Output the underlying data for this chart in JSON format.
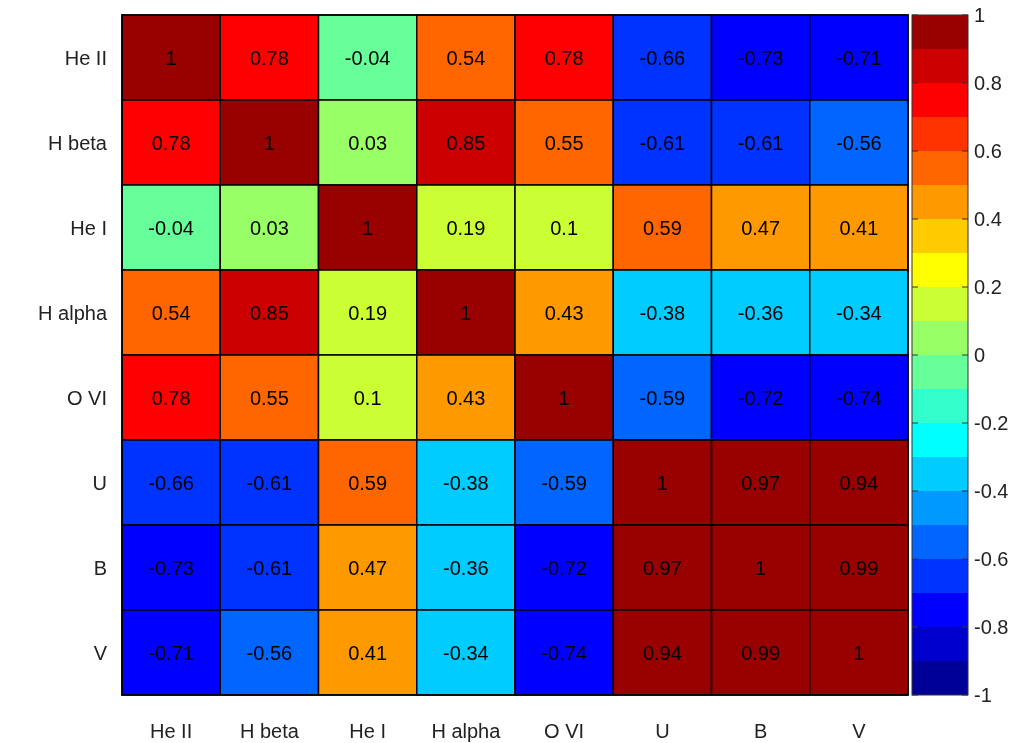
{
  "chart_data": {
    "type": "heatmap",
    "categories": [
      "He II",
      "H beta",
      "He I",
      "H alpha",
      "O VI",
      "U",
      "B",
      "V"
    ],
    "y_categories": [
      "He II",
      "H beta",
      "He I",
      "H alpha",
      "O VI",
      "U",
      "B",
      "V"
    ],
    "cells": [
      [
        1,
        0.78,
        -0.04,
        0.54,
        0.78,
        -0.66,
        -0.73,
        -0.71
      ],
      [
        0.78,
        1,
        0.03,
        0.85,
        0.55,
        -0.61,
        -0.61,
        -0.56
      ],
      [
        -0.04,
        0.03,
        1,
        0.19,
        0.1,
        0.59,
        0.47,
        0.41
      ],
      [
        0.54,
        0.85,
        0.19,
        1,
        0.43,
        -0.38,
        -0.36,
        -0.34
      ],
      [
        0.78,
        0.55,
        0.1,
        0.43,
        1,
        -0.59,
        -0.72,
        -0.74
      ],
      [
        -0.66,
        -0.61,
        0.59,
        -0.38,
        -0.59,
        1,
        0.97,
        0.94
      ],
      [
        -0.73,
        -0.61,
        0.47,
        -0.36,
        -0.72,
        0.97,
        1,
        0.99
      ],
      [
        -0.71,
        -0.56,
        0.41,
        -0.34,
        -0.74,
        0.94,
        0.99,
        1
      ]
    ],
    "clim": [
      -1,
      1
    ],
    "cticks": [
      -1,
      -0.8,
      -0.6,
      -0.4,
      -0.2,
      0,
      0.2,
      0.4,
      0.6,
      0.8,
      1
    ],
    "colors": [
      "#000099",
      "#0000cc",
      "#0000ff",
      "#0033ff",
      "#0066ff",
      "#0099ff",
      "#00ccff",
      "#00ffff",
      "#33ffcc",
      "#66ff99",
      "#99ff66",
      "#ccff33",
      "#ffff00",
      "#ffcc00",
      "#ff9900",
      "#ff6600",
      "#ff3300",
      "#ff0000",
      "#cc0000",
      "#990000"
    ],
    "data_labels": true
  }
}
